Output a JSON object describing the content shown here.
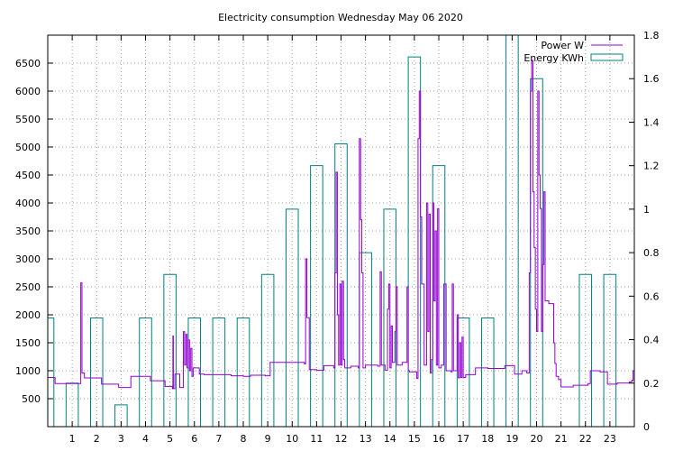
{
  "chart_data": {
    "type": "line",
    "title": "Electricity consumption Wednesday May 06 2020",
    "xlabel": "",
    "ylabel": "",
    "y2label": "",
    "xlim": [
      0,
      24
    ],
    "ylim": [
      0,
      7000
    ],
    "y2lim": [
      0,
      1.8
    ],
    "x_ticks": [
      1,
      2,
      3,
      4,
      5,
      6,
      7,
      8,
      9,
      10,
      11,
      12,
      13,
      14,
      15,
      16,
      17,
      18,
      19,
      20,
      21,
      22,
      23
    ],
    "y_ticks": [
      500,
      1000,
      1500,
      2000,
      2500,
      3000,
      3500,
      4000,
      4500,
      5000,
      5500,
      6000,
      6500
    ],
    "y2_ticks": [
      0,
      0.2,
      0.4,
      0.6,
      0.8,
      1,
      1.2,
      1.4,
      1.6,
      1.8
    ],
    "grid": true,
    "legend_position": "top-right",
    "series": [
      {
        "name": "Power W",
        "axis": "y",
        "color": "#9400d3",
        "style": "step-line",
        "points": [
          [
            0.0,
            880
          ],
          [
            0.3,
            770
          ],
          [
            1.3,
            770
          ],
          [
            1.35,
            2570
          ],
          [
            1.4,
            960
          ],
          [
            1.5,
            870
          ],
          [
            2.2,
            760
          ],
          [
            2.9,
            700
          ],
          [
            3.4,
            900
          ],
          [
            4.2,
            820
          ],
          [
            4.8,
            720
          ],
          [
            5.1,
            680
          ],
          [
            5.12,
            1620
          ],
          [
            5.14,
            680
          ],
          [
            5.2,
            940
          ],
          [
            5.4,
            700
          ],
          [
            5.55,
            1700
          ],
          [
            5.6,
            1100
          ],
          [
            5.65,
            1650
          ],
          [
            5.7,
            1050
          ],
          [
            5.75,
            1550
          ],
          [
            5.8,
            1000
          ],
          [
            5.85,
            1400
          ],
          [
            5.9,
            900
          ],
          [
            5.95,
            1050
          ],
          [
            6.2,
            940
          ],
          [
            6.4,
            930
          ],
          [
            7.5,
            910
          ],
          [
            8.0,
            900
          ],
          [
            8.3,
            920
          ],
          [
            8.9,
            910
          ],
          [
            9.1,
            1150
          ],
          [
            10.5,
            1120
          ],
          [
            10.55,
            3000
          ],
          [
            10.6,
            1950
          ],
          [
            10.7,
            1020
          ],
          [
            11.0,
            1010
          ],
          [
            11.3,
            1090
          ],
          [
            11.7,
            1050
          ],
          [
            11.75,
            2750
          ],
          [
            11.8,
            4550
          ],
          [
            11.85,
            2000
          ],
          [
            11.9,
            1100
          ],
          [
            11.95,
            2550
          ],
          [
            12.0,
            1100
          ],
          [
            12.05,
            2600
          ],
          [
            12.1,
            1200
          ],
          [
            12.15,
            1050
          ],
          [
            12.4,
            1080
          ],
          [
            12.7,
            1050
          ],
          [
            12.75,
            5150
          ],
          [
            12.8,
            3700
          ],
          [
            12.85,
            2750
          ],
          [
            12.9,
            1050
          ],
          [
            13.0,
            1100
          ],
          [
            13.5,
            1080
          ],
          [
            13.6,
            2770
          ],
          [
            13.65,
            1100
          ],
          [
            13.8,
            1010
          ],
          [
            13.9,
            2100
          ],
          [
            13.95,
            2550
          ],
          [
            14.0,
            1050
          ],
          [
            14.05,
            1800
          ],
          [
            14.1,
            1150
          ],
          [
            14.2,
            1700
          ],
          [
            14.25,
            2500
          ],
          [
            14.3,
            1100
          ],
          [
            14.5,
            1150
          ],
          [
            14.7,
            2500
          ],
          [
            14.75,
            1000
          ],
          [
            14.8,
            980
          ],
          [
            15.1,
            860
          ],
          [
            15.15,
            5150
          ],
          [
            15.2,
            6000
          ],
          [
            15.25,
            3750
          ],
          [
            15.3,
            2550
          ],
          [
            15.4,
            1100
          ],
          [
            15.5,
            4000
          ],
          [
            15.55,
            1700
          ],
          [
            15.6,
            3800
          ],
          [
            15.65,
            960
          ],
          [
            15.7,
            1200
          ],
          [
            15.75,
            4000
          ],
          [
            15.8,
            2250
          ],
          [
            15.85,
            3500
          ],
          [
            15.9,
            1100
          ],
          [
            15.95,
            3900
          ],
          [
            16.0,
            1050
          ],
          [
            16.1,
            1100
          ],
          [
            16.2,
            2550
          ],
          [
            16.3,
            1000
          ],
          [
            16.5,
            980
          ],
          [
            16.55,
            2550
          ],
          [
            16.6,
            1000
          ],
          [
            16.75,
            2000
          ],
          [
            16.8,
            870
          ],
          [
            16.85,
            1500
          ],
          [
            16.9,
            880
          ],
          [
            16.95,
            1600
          ],
          [
            17.0,
            880
          ],
          [
            17.1,
            930
          ],
          [
            17.5,
            1050
          ],
          [
            18.0,
            1040
          ],
          [
            18.7,
            1090
          ],
          [
            19.1,
            940
          ],
          [
            19.4,
            1000
          ],
          [
            19.6,
            960
          ],
          [
            19.7,
            2750
          ],
          [
            19.75,
            6000
          ],
          [
            19.8,
            6550
          ],
          [
            19.85,
            4200
          ],
          [
            19.9,
            3200
          ],
          [
            19.95,
            2100
          ],
          [
            20.0,
            1700
          ],
          [
            20.05,
            6000
          ],
          [
            20.1,
            4500
          ],
          [
            20.15,
            3900
          ],
          [
            20.2,
            1700
          ],
          [
            20.25,
            2900
          ],
          [
            20.3,
            4200
          ],
          [
            20.35,
            2250
          ],
          [
            20.5,
            2200
          ],
          [
            20.7,
            1500
          ],
          [
            20.75,
            1130
          ],
          [
            20.8,
            900
          ],
          [
            20.9,
            840
          ],
          [
            21.0,
            710
          ],
          [
            21.5,
            740
          ],
          [
            22.1,
            770
          ],
          [
            22.2,
            1000
          ],
          [
            22.6,
            980
          ],
          [
            22.9,
            760
          ],
          [
            23.3,
            780
          ],
          [
            23.8,
            800
          ],
          [
            23.9,
            830
          ],
          [
            23.95,
            1000
          ],
          [
            24.0,
            1050
          ]
        ]
      },
      {
        "name": "Energy KWh",
        "axis": "y2",
        "color": "#008080",
        "style": "boxes",
        "boxes": [
          [
            -0.25,
            0.25,
            0.5
          ],
          [
            0.75,
            1.25,
            0.2
          ],
          [
            1.75,
            2.25,
            0.5
          ],
          [
            2.75,
            3.25,
            0.1
          ],
          [
            3.75,
            4.25,
            0.5
          ],
          [
            4.75,
            5.25,
            0.7
          ],
          [
            5.75,
            6.25,
            0.5
          ],
          [
            6.75,
            7.25,
            0.5
          ],
          [
            7.75,
            8.25,
            0.5
          ],
          [
            8.75,
            9.25,
            0.7
          ],
          [
            9.75,
            10.25,
            1.0
          ],
          [
            10.75,
            11.25,
            1.2
          ],
          [
            11.75,
            12.25,
            1.3
          ],
          [
            12.75,
            13.25,
            0.8
          ],
          [
            13.75,
            14.25,
            1.0
          ],
          [
            14.75,
            15.25,
            1.7
          ],
          [
            15.75,
            16.25,
            1.2
          ],
          [
            16.75,
            17.25,
            0.5
          ],
          [
            17.75,
            18.25,
            0.5
          ],
          [
            18.75,
            19.25,
            1.8
          ],
          [
            19.75,
            20.25,
            1.6
          ],
          [
            21.75,
            22.25,
            0.7
          ],
          [
            22.75,
            23.25,
            0.7
          ]
        ]
      }
    ]
  }
}
